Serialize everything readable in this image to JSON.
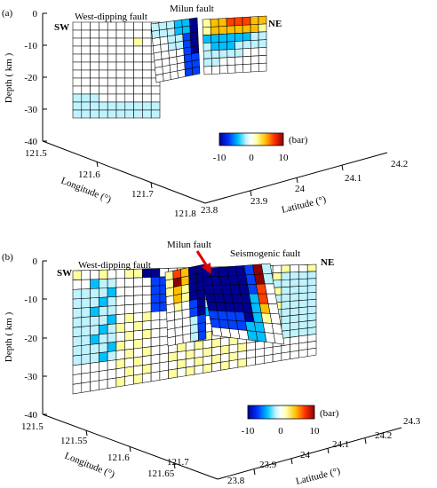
{
  "panels": [
    {
      "id": "a",
      "panel_label": "(a)",
      "labels": {
        "sw": "SW",
        "ne": "NE",
        "west_fault": "West-dipping fault",
        "milun_fault": "Milun fault",
        "seismogenic_fault": ""
      },
      "depth_axis": {
        "title": "Depth ( km )",
        "ticks": [
          "0",
          "-10",
          "-20",
          "-30",
          "-40"
        ]
      },
      "longitude_axis": {
        "title": "Longitude (°)",
        "ticks": [
          "121.5",
          "121.6",
          "121.7",
          "121.8"
        ]
      },
      "latitude_axis": {
        "title": "Latitude (°)",
        "ticks": [
          "23.8",
          "23.9",
          "24",
          "24.1",
          "24.2"
        ]
      },
      "colorbar": {
        "unit": "(bar)",
        "ticks": [
          "-10",
          "0",
          "10"
        ]
      }
    },
    {
      "id": "b",
      "panel_label": "(b)",
      "labels": {
        "sw": "SW",
        "ne": "NE",
        "west_fault": "West-dipping fault",
        "milun_fault": "Milun fault",
        "seismogenic_fault": "Seismogenic fault"
      },
      "depth_axis": {
        "title": "Depth ( km )",
        "ticks": [
          "0",
          "-10",
          "-20",
          "-30",
          "-40"
        ]
      },
      "longitude_axis": {
        "title": "Longitude (°)",
        "ticks": [
          "121.5",
          "121.55",
          "121.6",
          "121.65",
          "121.7"
        ]
      },
      "latitude_axis": {
        "title": "Latitude (°)",
        "ticks": [
          "23.8",
          "23.9",
          "24",
          "24.1",
          "24.2",
          "24.3"
        ]
      },
      "colorbar": {
        "unit": "(bar)",
        "ticks": [
          "-10",
          "0",
          "10"
        ]
      }
    }
  ],
  "colors": {
    "colormap": [
      "#00008f",
      "#0040ff",
      "#00bfff",
      "#bff3ff",
      "#ffffff",
      "#ffff9f",
      "#ffbf00",
      "#ff4000",
      "#8f0000"
    ],
    "grid_line": "#000000",
    "arrow": "#e00000"
  }
}
